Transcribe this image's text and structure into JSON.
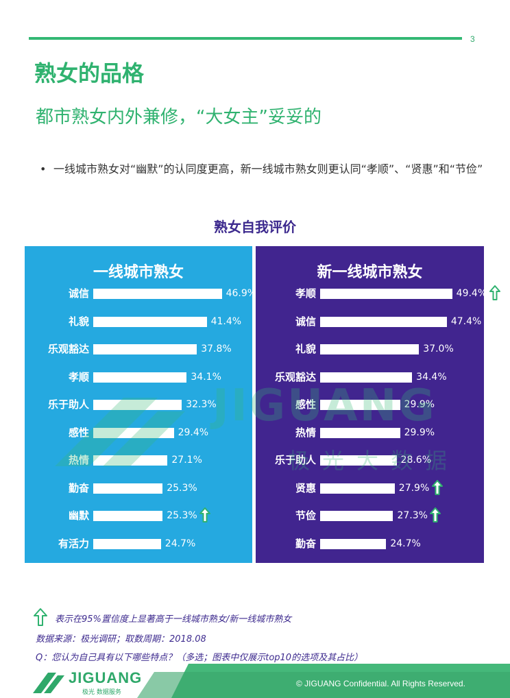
{
  "page": {
    "number": "3",
    "title": "熟女的品格",
    "subtitle": "都市熟女内外兼修，“大女主”妥妥的",
    "bullet": "一线城市熟女对“幽默”的认同度更高，新一线城市熟女则更认同“孝顺”、“贤惠”和“节俭”",
    "bullet_marker": "•"
  },
  "chart_data": {
    "type": "bar",
    "title": "熟女自我评价",
    "orientation": "horizontal",
    "xlim": [
      0,
      60
    ],
    "panels": [
      {
        "name": "一线城市熟女",
        "color": "#25a9e0",
        "categories": [
          "诚信",
          "礼貌",
          "乐观豁达",
          "孝顺",
          "乐于助人",
          "感性",
          "热情",
          "勤奋",
          "幽默",
          "有活力"
        ],
        "values": [
          46.9,
          41.4,
          37.8,
          34.1,
          32.3,
          29.4,
          27.1,
          25.3,
          25.3,
          24.7
        ],
        "labels": [
          "46.9%",
          "41.4%",
          "37.8%",
          "34.1%",
          "32.3%",
          "29.4%",
          "27.1%",
          "25.3%",
          "25.3%",
          "24.7%"
        ],
        "significant_higher": [
          false,
          false,
          false,
          false,
          false,
          false,
          false,
          false,
          true,
          false
        ]
      },
      {
        "name": "新一线城市熟女",
        "color": "#41258f",
        "categories": [
          "孝顺",
          "诚信",
          "礼貌",
          "乐观豁达",
          "感性",
          "热情",
          "乐于助人",
          "贤惠",
          "节俭",
          "勤奋"
        ],
        "values": [
          49.4,
          47.4,
          37.0,
          34.4,
          29.9,
          29.9,
          28.6,
          27.9,
          27.3,
          24.7
        ],
        "labels": [
          "49.4%",
          "47.4%",
          "37.0%",
          "34.4%",
          "29.9%",
          "29.9%",
          "28.6%",
          "27.9%",
          "27.3%",
          "24.7%"
        ],
        "significant_higher": [
          true,
          false,
          false,
          false,
          false,
          false,
          false,
          true,
          true,
          false
        ]
      }
    ]
  },
  "notes": {
    "legend_arrow": "表示在95%置信度上显著高于一线城市熟女/新一线城市熟女",
    "source": "数据来源：极光调研；取数周期：2018.08",
    "question": "Q：您认为自己具有以下哪些特点？（多选；图表中仅展示top10的选项及其占比）"
  },
  "watermark": {
    "text": "JIGUANG",
    "cn": "极光大数据"
  },
  "footer": {
    "logo_text": "JIGUANG",
    "logo_sub": "极光 数据服务",
    "copyright": "© JIGUANG Confidential. All Rights Reserved."
  },
  "colors": {
    "accent_green": "#2fb26f",
    "panel_left": "#25a9e0",
    "panel_right": "#41258f",
    "arrow": "#2fb26f"
  }
}
